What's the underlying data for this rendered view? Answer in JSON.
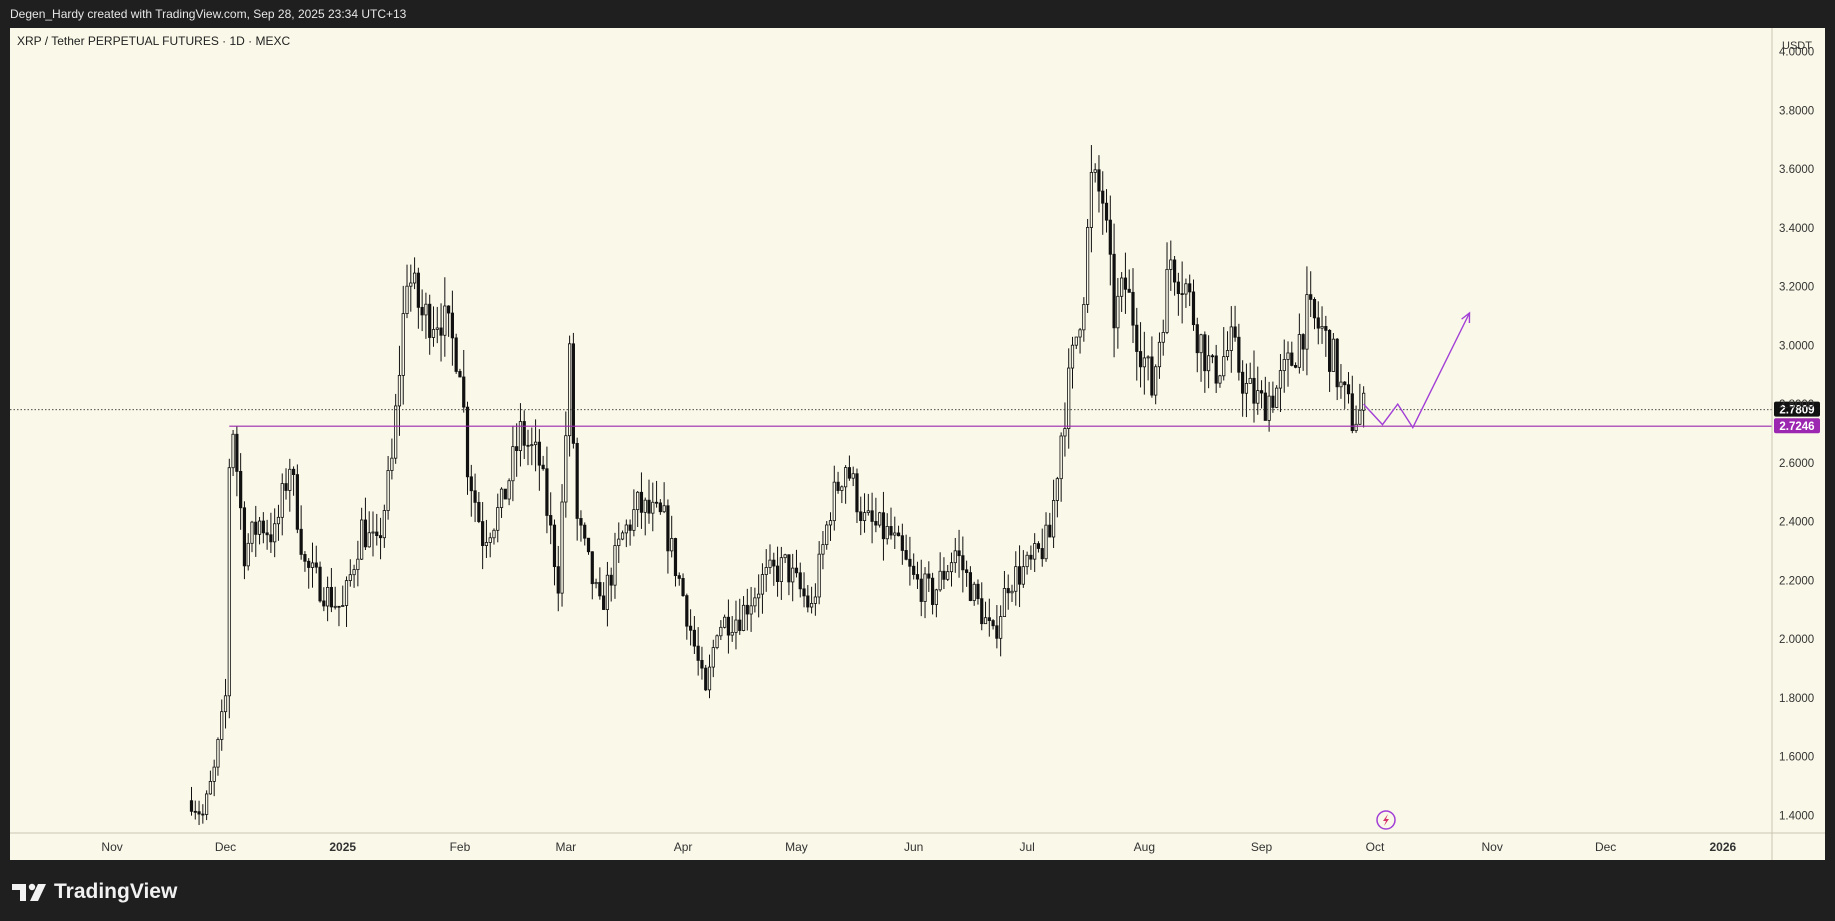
{
  "header": {
    "attribution": "Degen_Hardy created with TradingView.com, Sep 28, 2025 23:34 UTC+13"
  },
  "brand": {
    "name": "TradingView"
  },
  "chart_data": {
    "type": "candlestick",
    "title": "XRP / Tether PERPETUAL FUTURES · 1D · MEXC",
    "currency_label": "USDT",
    "ylim": [
      1.34,
      4.08
    ],
    "y_ticks": [
      "1.4000",
      "1.6000",
      "1.8000",
      "2.0000",
      "2.2000",
      "2.4000",
      "2.6000",
      "2.8000",
      "3.0000",
      "3.2000",
      "3.4000",
      "3.6000",
      "3.8000",
      "4.0000"
    ],
    "x_ticks": [
      {
        "label": "Nov",
        "date": "2024-11-01",
        "bold": false
      },
      {
        "label": "Dec",
        "date": "2024-12-01",
        "bold": false
      },
      {
        "label": "2025",
        "date": "2025-01-01",
        "bold": true
      },
      {
        "label": "Feb",
        "date": "2025-02-01",
        "bold": false
      },
      {
        "label": "Mar",
        "date": "2025-03-01",
        "bold": false
      },
      {
        "label": "Apr",
        "date": "2025-04-01",
        "bold": false
      },
      {
        "label": "May",
        "date": "2025-05-01",
        "bold": false
      },
      {
        "label": "Jun",
        "date": "2025-06-01",
        "bold": false
      },
      {
        "label": "Jul",
        "date": "2025-07-01",
        "bold": false
      },
      {
        "label": "Aug",
        "date": "2025-08-01",
        "bold": false
      },
      {
        "label": "Sep",
        "date": "2025-09-01",
        "bold": false
      },
      {
        "label": "Oct",
        "date": "2025-10-01",
        "bold": false
      },
      {
        "label": "Nov",
        "date": "2025-11-01",
        "bold": false
      },
      {
        "label": "Dec",
        "date": "2025-12-01",
        "bold": false
      },
      {
        "label": "2026",
        "date": "2026-01-01",
        "bold": true
      }
    ],
    "current_price": {
      "value": 2.7809,
      "label": "2.7809"
    },
    "support_level": {
      "value": 2.7246,
      "label": "2.7246",
      "from": "2024-12-02",
      "color": "#9c27b0"
    },
    "projection_path": [
      {
        "date": "2025-09-28",
        "y": 2.8
      },
      {
        "date": "2025-10-03",
        "y": 2.73
      },
      {
        "date": "2025-10-07",
        "y": 2.8
      },
      {
        "date": "2025-10-11",
        "y": 2.72
      },
      {
        "date": "2025-10-26",
        "y": 3.11
      }
    ],
    "closes": [
      {
        "date": "2024-11-22",
        "y": 1.45
      },
      {
        "date": "2024-11-25",
        "y": 1.4
      },
      {
        "date": "2024-11-28",
        "y": 1.55
      },
      {
        "date": "2024-12-01",
        "y": 1.8
      },
      {
        "date": "2024-12-02",
        "y": 2.6
      },
      {
        "date": "2024-12-03",
        "y": 2.72
      },
      {
        "date": "2024-12-06",
        "y": 2.3
      },
      {
        "date": "2024-12-10",
        "y": 2.4
      },
      {
        "date": "2024-12-14",
        "y": 2.35
      },
      {
        "date": "2024-12-18",
        "y": 2.6
      },
      {
        "date": "2024-12-22",
        "y": 2.25
      },
      {
        "date": "2024-12-28",
        "y": 2.15
      },
      {
        "date": "2025-01-01",
        "y": 2.1
      },
      {
        "date": "2025-01-06",
        "y": 2.38
      },
      {
        "date": "2025-01-10",
        "y": 2.3
      },
      {
        "date": "2025-01-14",
        "y": 2.6
      },
      {
        "date": "2025-01-18",
        "y": 3.25
      },
      {
        "date": "2025-01-22",
        "y": 3.1
      },
      {
        "date": "2025-01-27",
        "y": 3.1
      },
      {
        "date": "2025-02-01",
        "y": 2.95
      },
      {
        "date": "2025-02-03",
        "y": 2.6
      },
      {
        "date": "2025-02-07",
        "y": 2.35
      },
      {
        "date": "2025-02-12",
        "y": 2.45
      },
      {
        "date": "2025-02-17",
        "y": 2.7
      },
      {
        "date": "2025-02-22",
        "y": 2.6
      },
      {
        "date": "2025-02-27",
        "y": 2.2
      },
      {
        "date": "2025-03-02",
        "y": 2.95
      },
      {
        "date": "2025-03-04",
        "y": 2.4
      },
      {
        "date": "2025-03-10",
        "y": 2.1
      },
      {
        "date": "2025-03-16",
        "y": 2.35
      },
      {
        "date": "2025-03-20",
        "y": 2.45
      },
      {
        "date": "2025-03-27",
        "y": 2.4
      },
      {
        "date": "2025-04-01",
        "y": 2.15
      },
      {
        "date": "2025-04-07",
        "y": 1.8
      },
      {
        "date": "2025-04-10",
        "y": 2.05
      },
      {
        "date": "2025-04-16",
        "y": 2.08
      },
      {
        "date": "2025-04-22",
        "y": 2.2
      },
      {
        "date": "2025-04-28",
        "y": 2.25
      },
      {
        "date": "2025-05-05",
        "y": 2.1
      },
      {
        "date": "2025-05-10",
        "y": 2.45
      },
      {
        "date": "2025-05-14",
        "y": 2.6
      },
      {
        "date": "2025-05-19",
        "y": 2.4
      },
      {
        "date": "2025-05-26",
        "y": 2.35
      },
      {
        "date": "2025-06-01",
        "y": 2.2
      },
      {
        "date": "2025-06-06",
        "y": 2.15
      },
      {
        "date": "2025-06-12",
        "y": 2.3
      },
      {
        "date": "2025-06-17",
        "y": 2.15
      },
      {
        "date": "2025-06-22",
        "y": 2.0
      },
      {
        "date": "2025-06-26",
        "y": 2.2
      },
      {
        "date": "2025-07-02",
        "y": 2.25
      },
      {
        "date": "2025-07-07",
        "y": 2.35
      },
      {
        "date": "2025-07-10",
        "y": 2.7
      },
      {
        "date": "2025-07-13",
        "y": 2.95
      },
      {
        "date": "2025-07-16",
        "y": 3.2
      },
      {
        "date": "2025-07-18",
        "y": 3.55
      },
      {
        "date": "2025-07-21",
        "y": 3.5
      },
      {
        "date": "2025-07-24",
        "y": 3.1
      },
      {
        "date": "2025-07-27",
        "y": 3.2
      },
      {
        "date": "2025-07-31",
        "y": 3.0
      },
      {
        "date": "2025-08-03",
        "y": 2.85
      },
      {
        "date": "2025-08-08",
        "y": 3.3
      },
      {
        "date": "2025-08-12",
        "y": 3.2
      },
      {
        "date": "2025-08-15",
        "y": 3.05
      },
      {
        "date": "2025-08-19",
        "y": 2.9
      },
      {
        "date": "2025-08-24",
        "y": 3.0
      },
      {
        "date": "2025-08-28",
        "y": 2.85
      },
      {
        "date": "2025-09-01",
        "y": 2.8
      },
      {
        "date": "2025-09-05",
        "y": 2.85
      },
      {
        "date": "2025-09-09",
        "y": 2.95
      },
      {
        "date": "2025-09-13",
        "y": 3.1
      },
      {
        "date": "2025-09-17",
        "y": 3.05
      },
      {
        "date": "2025-09-20",
        "y": 2.95
      },
      {
        "date": "2025-09-22",
        "y": 2.85
      },
      {
        "date": "2025-09-25",
        "y": 2.75
      },
      {
        "date": "2025-09-28",
        "y": 2.78
      }
    ]
  }
}
